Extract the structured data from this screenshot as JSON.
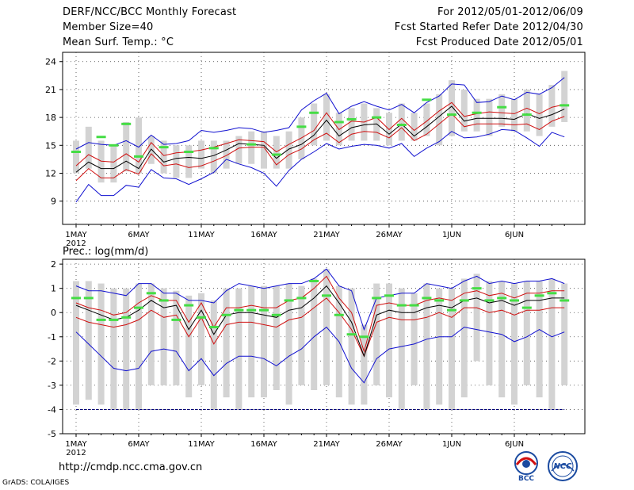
{
  "header": {
    "title": "DERF/NCC/BCC Monthly Forecast",
    "member_size": "Member Size=40",
    "variable": "Mean Surf. Temp.: °C",
    "forecast_period": "For 2012/05/01-2012/06/09",
    "started": "Fcst Started Refer Date 2012/04/30",
    "produced": "Fcst Produced Date 2012/05/01"
  },
  "footer": {
    "url": "http://cmdp.ncc.cma.gov.cn",
    "credit": "GrADS: COLA/IGES",
    "logo_bcc": "BCC",
    "logo_ncc": "NCC"
  },
  "colors": {
    "box": "#d3d3d3",
    "median": "#000000",
    "quartile": "#d01010",
    "extreme": "#1010d0",
    "observed": "#44dd44",
    "floor": "#000080"
  },
  "chart_data": [
    {
      "type": "box",
      "title": "Mean Surf. Temp.: °C",
      "xlabel": "",
      "ylabel": "",
      "ylim": [
        6.5,
        25
      ],
      "yticks": [
        9,
        12,
        15,
        18,
        21,
        24
      ],
      "x_tick_labels": [
        "1MAY",
        "6MAY",
        "11MAY",
        "16MAY",
        "21MAY",
        "26MAY",
        "1JUN",
        "6JUN"
      ],
      "x_year_label": "2012",
      "days": 40,
      "series": [
        {
          "name": "max",
          "values": [
            8.9,
            10.8,
            9.6,
            9.6,
            10.7,
            10.5,
            12.4,
            11.5,
            11.4,
            10.8,
            11.4,
            12.1,
            13.5,
            13.0,
            12.6,
            12.0,
            10.6,
            12.3,
            13.5,
            14.3,
            15.2,
            14.6,
            14.9,
            15.1,
            15.0,
            14.7,
            15.2,
            13.8,
            14.7,
            15.4,
            16.5,
            15.8,
            15.9,
            16.2,
            16.7,
            16.6,
            15.8,
            14.9,
            16.4,
            15.9
          ]
        },
        {
          "name": "q25",
          "values": [
            11.2,
            12.5,
            11.5,
            11.5,
            12.4,
            11.9,
            14.1,
            12.8,
            13.0,
            12.6,
            12.8,
            13.3,
            13.9,
            14.7,
            14.8,
            14.8,
            12.9,
            14.0,
            14.6,
            15.6,
            16.3,
            15.3,
            16.2,
            16.5,
            16.4,
            15.8,
            16.9,
            15.5,
            16.2,
            17.3,
            18.4,
            17.0,
            17.3,
            17.3,
            17.3,
            17.2,
            17.3,
            16.7,
            17.6,
            18.1
          ]
        },
        {
          "name": "median",
          "values": [
            12.1,
            13.2,
            12.5,
            12.5,
            13.3,
            12.5,
            14.6,
            13.2,
            13.6,
            13.7,
            13.6,
            13.9,
            14.5,
            15.2,
            15.1,
            15.0,
            13.6,
            14.6,
            15.1,
            16.1,
            17.7,
            16.0,
            16.9,
            17.2,
            17.3,
            16.2,
            17.3,
            16.0,
            17.0,
            18.1,
            19.2,
            17.6,
            17.9,
            17.9,
            17.9,
            17.8,
            18.4,
            17.9,
            18.3,
            18.9
          ]
        },
        {
          "name": "q75",
          "values": [
            12.8,
            14.0,
            13.3,
            13.2,
            14.1,
            13.2,
            15.3,
            13.9,
            14.2,
            14.3,
            14.5,
            14.8,
            15.2,
            15.6,
            15.5,
            15.4,
            14.3,
            15.1,
            15.8,
            16.6,
            18.5,
            16.7,
            17.6,
            17.5,
            18.0,
            16.7,
            17.9,
            16.6,
            17.6,
            18.7,
            19.6,
            18.1,
            18.4,
            18.6,
            18.5,
            18.4,
            19.0,
            18.4,
            19.1,
            19.4
          ]
        },
        {
          "name": "min",
          "values": [
            14.6,
            15.3,
            15.1,
            15.0,
            15.5,
            14.8,
            16.1,
            15.1,
            15.2,
            15.5,
            16.6,
            16.4,
            16.6,
            16.9,
            16.8,
            16.4,
            16.6,
            16.9,
            18.8,
            19.8,
            20.6,
            18.4,
            19.2,
            19.7,
            19.2,
            18.8,
            19.4,
            18.5,
            19.6,
            20.3,
            21.6,
            21.5,
            19.6,
            19.7,
            20.3,
            19.9,
            20.7,
            20.5,
            21.2,
            22.3
          ]
        },
        {
          "name": "box_low",
          "values": [
            12.0,
            12.5,
            11.0,
            11.0,
            12.2,
            12.0,
            13.0,
            12.0,
            11.5,
            11.5,
            12.5,
            12.0,
            12.5,
            13.0,
            13.0,
            12.5,
            12.5,
            12.5,
            13.5,
            15.0,
            15.5,
            15.0,
            15.5,
            15.5,
            15.5,
            15.0,
            15.5,
            15.5,
            16.0,
            15.0,
            16.0,
            16.5,
            16.5,
            16.0,
            17.0,
            16.5,
            16.5,
            16.0,
            17.0,
            17.5
          ]
        },
        {
          "name": "box_high",
          "values": [
            15.5,
            17.0,
            15.5,
            15.0,
            17.5,
            18.0,
            16.0,
            15.5,
            15.0,
            15.0,
            15.5,
            15.5,
            15.5,
            16.0,
            16.5,
            16.5,
            16.0,
            16.5,
            18.0,
            19.5,
            20.5,
            18.5,
            19.0,
            19.5,
            19.0,
            18.5,
            19.5,
            18.5,
            19.5,
            20.5,
            22.0,
            21.0,
            20.0,
            20.0,
            20.5,
            20.0,
            21.0,
            20.5,
            21.5,
            23.0
          ]
        },
        {
          "name": "observed",
          "values": [
            14.3,
            null,
            15.9,
            15.0,
            17.3,
            13.8,
            null,
            14.8,
            null,
            14.3,
            null,
            14.7,
            null,
            null,
            15.1,
            null,
            14.0,
            null,
            17.0,
            18.5,
            null,
            17.5,
            17.8,
            null,
            18.0,
            null,
            17.2,
            null,
            19.9,
            null,
            18.3,
            null,
            18.5,
            null,
            19.1,
            null,
            18.3,
            null,
            null,
            19.3
          ]
        }
      ]
    },
    {
      "type": "box",
      "title": "Prec.: log(mm/d)",
      "xlabel": "",
      "ylabel": "",
      "ylim": [
        -5,
        2.2
      ],
      "yticks": [
        -5,
        -4,
        -3,
        -2,
        -1,
        0,
        1,
        2
      ],
      "x_tick_labels": [
        "1MAY",
        "6MAY",
        "11MAY",
        "16MAY",
        "21MAY",
        "26MAY",
        "1JUN",
        "6JUN"
      ],
      "x_year_label": "2012",
      "days": 40,
      "floor": -4,
      "series": [
        {
          "name": "max",
          "values": [
            1.1,
            0.9,
            0.9,
            0.8,
            0.7,
            1.2,
            1.2,
            0.8,
            0.8,
            0.5,
            0.5,
            0.4,
            0.9,
            1.2,
            1.1,
            1.0,
            1.1,
            1.2,
            1.2,
            1.4,
            1.8,
            1.1,
            0.9,
            -0.7,
            0.6,
            0.7,
            0.8,
            0.8,
            1.2,
            1.1,
            1.0,
            1.3,
            1.5,
            1.2,
            1.3,
            1.2,
            1.3,
            1.3,
            1.4,
            1.2
          ]
        },
        {
          "name": "upper",
          "values": [
            0.4,
            0.2,
            0.1,
            -0.1,
            0.0,
            0.4,
            0.7,
            0.5,
            0.5,
            -0.4,
            0.4,
            -0.6,
            0.2,
            0.2,
            0.3,
            0.2,
            0.2,
            0.5,
            0.6,
            1.0,
            1.5,
            0.6,
            0.0,
            -1.6,
            0.3,
            0.4,
            0.3,
            0.3,
            0.5,
            0.6,
            0.5,
            0.8,
            0.9,
            0.7,
            0.8,
            0.6,
            0.8,
            0.8,
            0.9,
            0.9
          ]
        },
        {
          "name": "median",
          "values": [
            0.3,
            0.1,
            -0.1,
            -0.3,
            -0.2,
            0.1,
            0.5,
            0.2,
            0.3,
            -0.7,
            0.1,
            -0.9,
            -0.1,
            0.0,
            0.0,
            -0.1,
            -0.2,
            0.1,
            0.2,
            0.6,
            1.1,
            0.4,
            -0.4,
            -1.8,
            -0.1,
            0.1,
            0.0,
            0.0,
            0.2,
            0.3,
            0.2,
            0.5,
            0.6,
            0.4,
            0.5,
            0.3,
            0.5,
            0.5,
            0.6,
            0.6
          ]
        },
        {
          "name": "lower",
          "values": [
            -0.2,
            -0.4,
            -0.5,
            -0.6,
            -0.5,
            -0.3,
            0.1,
            -0.2,
            -0.1,
            -1.0,
            -0.2,
            -1.3,
            -0.5,
            -0.4,
            -0.4,
            -0.5,
            -0.6,
            -0.3,
            -0.2,
            0.2,
            0.6,
            0.0,
            -0.7,
            -1.8,
            -0.4,
            -0.2,
            -0.3,
            -0.3,
            -0.2,
            0.0,
            -0.2,
            0.2,
            0.2,
            0.0,
            0.1,
            -0.1,
            0.1,
            0.1,
            0.2,
            0.2
          ]
        },
        {
          "name": "min",
          "values": [
            -0.8,
            -1.3,
            -1.8,
            -2.3,
            -2.4,
            -2.3,
            -1.6,
            -1.5,
            -1.6,
            -2.4,
            -1.9,
            -2.6,
            -2.1,
            -1.8,
            -1.8,
            -1.9,
            -2.2,
            -1.8,
            -1.5,
            -1.0,
            -0.6,
            -1.2,
            -2.3,
            -2.9,
            -1.9,
            -1.5,
            -1.4,
            -1.3,
            -1.1,
            -1.0,
            -1.0,
            -0.6,
            -0.7,
            -0.8,
            -0.9,
            -1.2,
            -1.0,
            -0.7,
            -1.0,
            -0.8
          ]
        },
        {
          "name": "box_low",
          "values": [
            -3.8,
            -3.6,
            -3.8,
            -4.0,
            -4.0,
            -4.0,
            -3.0,
            -3.0,
            -3.0,
            -3.5,
            -3.0,
            -4.0,
            -3.5,
            -4.0,
            -3.5,
            -3.5,
            -3.2,
            -3.8,
            -3.0,
            -3.2,
            -3.0,
            -3.5,
            -3.8,
            -3.8,
            -3.0,
            -3.5,
            -4.0,
            -3.0,
            -4.0,
            -3.8,
            -4.0,
            -3.5,
            -2.0,
            -3.0,
            -3.5,
            -3.8,
            -3.0,
            -3.5,
            -4.0,
            -3.0
          ]
        },
        {
          "name": "box_high",
          "values": [
            1.3,
            1.3,
            1.2,
            1.0,
            1.0,
            1.2,
            1.2,
            1.0,
            0.9,
            0.7,
            0.8,
            0.5,
            1.0,
            1.0,
            1.1,
            1.1,
            1.1,
            1.2,
            1.1,
            1.4,
            1.8,
            1.1,
            1.0,
            -0.5,
            1.2,
            1.2,
            1.0,
            0.8,
            1.2,
            1.0,
            1.0,
            1.4,
            1.6,
            1.3,
            1.3,
            1.2,
            1.3,
            1.3,
            1.4,
            1.2
          ]
        },
        {
          "name": "observed",
          "values": [
            0.6,
            0.6,
            -0.3,
            -0.3,
            -0.2,
            0.2,
            0.8,
            0.5,
            -0.3,
            0.3,
            -0.2,
            -0.6,
            -0.1,
            0.1,
            0.1,
            0.1,
            -0.1,
            0.5,
            0.6,
            1.3,
            0.7,
            -0.1,
            -0.9,
            -1.0,
            0.6,
            0.7,
            0.3,
            0.3,
            0.6,
            0.5,
            0.1,
            0.5,
            1.0,
            0.5,
            0.6,
            0.5,
            0.2,
            0.7,
            0.8,
            0.5
          ]
        }
      ]
    }
  ]
}
